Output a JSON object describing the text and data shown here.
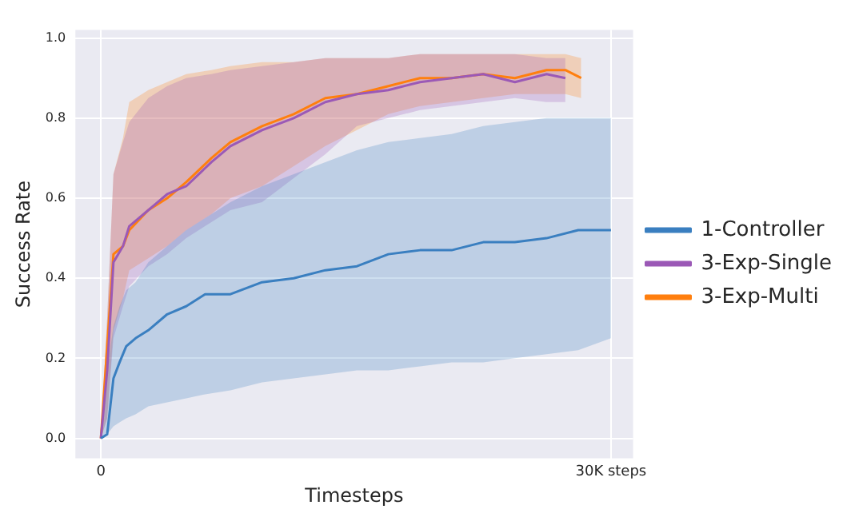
{
  "chart_data": {
    "type": "line",
    "xlabel": "Timesteps",
    "ylabel": "Success Rate",
    "xlim": [
      -1500,
      31300
    ],
    "ylim": [
      -0.05,
      1.02
    ],
    "xticks": [
      {
        "value": 0,
        "label": "0"
      },
      {
        "value": 30000,
        "label": "30K steps"
      }
    ],
    "yticks": [
      {
        "value": 0,
        "label": "0.0"
      },
      {
        "value": 0.2,
        "label": "0.2"
      },
      {
        "value": 0.4,
        "label": "0.4"
      },
      {
        "value": 0.6,
        "label": "0.6"
      },
      {
        "value": 0.8,
        "label": "0.8"
      },
      {
        "value": 1,
        "label": "1.0"
      }
    ],
    "grid": true,
    "legend": "right",
    "marker": "none",
    "line_style": "solid",
    "series": [
      {
        "name": "1-Controller",
        "color": "#3a7fc0",
        "x": [
          0,
          370,
          740,
          1100,
          1490,
          2040,
          2790,
          3900,
          5020,
          6130,
          7620,
          9480,
          11340,
          13200,
          15060,
          16910,
          18770,
          20630,
          22490,
          24350,
          26210,
          28070,
          30000
        ],
        "values": [
          0,
          0.01,
          0.15,
          0.19,
          0.23,
          0.25,
          0.27,
          0.31,
          0.33,
          0.36,
          0.36,
          0.39,
          0.4,
          0.42,
          0.43,
          0.46,
          0.47,
          0.47,
          0.49,
          0.49,
          0.5,
          0.52,
          0.52
        ],
        "lower": [
          0,
          0.01,
          0.03,
          0.04,
          0.05,
          0.06,
          0.08,
          0.09,
          0.1,
          0.11,
          0.12,
          0.14,
          0.15,
          0.16,
          0.17,
          0.17,
          0.18,
          0.19,
          0.19,
          0.2,
          0.21,
          0.22,
          0.25
        ],
        "upper": [
          0,
          0.17,
          0.28,
          0.33,
          0.37,
          0.39,
          0.44,
          0.48,
          0.52,
          0.55,
          0.59,
          0.63,
          0.66,
          0.69,
          0.72,
          0.74,
          0.75,
          0.76,
          0.78,
          0.79,
          0.8,
          0.8,
          0.8
        ]
      },
      {
        "name": "3-Exp-Single",
        "color": "#9b59b6",
        "x": [
          0,
          370,
          740,
          1300,
          1670,
          2790,
          3900,
          5020,
          6500,
          7620,
          9480,
          11340,
          13200,
          15060,
          16910,
          18770,
          20630,
          22490,
          24350,
          26210,
          27320
        ],
        "values": [
          0,
          0.17,
          0.44,
          0.48,
          0.53,
          0.57,
          0.61,
          0.63,
          0.69,
          0.73,
          0.77,
          0.8,
          0.84,
          0.86,
          0.87,
          0.89,
          0.9,
          0.91,
          0.89,
          0.91,
          0.9
        ],
        "lower": [
          0,
          0.05,
          0.25,
          0.33,
          0.38,
          0.43,
          0.46,
          0.5,
          0.54,
          0.57,
          0.59,
          0.65,
          0.71,
          0.78,
          0.8,
          0.82,
          0.83,
          0.84,
          0.85,
          0.84,
          0.84
        ],
        "upper": [
          0,
          0.3,
          0.66,
          0.74,
          0.79,
          0.85,
          0.88,
          0.9,
          0.91,
          0.92,
          0.93,
          0.94,
          0.95,
          0.95,
          0.95,
          0.96,
          0.96,
          0.96,
          0.96,
          0.95,
          0.95
        ]
      },
      {
        "name": "3-Exp-Multi",
        "color": "#ff7f0e",
        "x": [
          0,
          370,
          740,
          1300,
          1670,
          2790,
          3900,
          5020,
          6500,
          7620,
          9480,
          11340,
          13200,
          15060,
          16910,
          18770,
          20630,
          22490,
          24350,
          26210,
          27320,
          28250
        ],
        "values": [
          0,
          null,
          0.46,
          0.48,
          0.52,
          0.57,
          0.6,
          0.64,
          0.7,
          0.74,
          0.78,
          0.81,
          0.85,
          0.86,
          0.88,
          0.9,
          0.9,
          0.91,
          0.9,
          0.92,
          0.92,
          0.9
        ],
        "lower": [
          0,
          0.05,
          0.27,
          0.35,
          0.42,
          0.45,
          0.48,
          0.52,
          0.56,
          0.6,
          0.63,
          0.68,
          0.73,
          0.77,
          0.81,
          0.83,
          0.84,
          0.85,
          0.86,
          0.86,
          0.86,
          0.85
        ],
        "upper": [
          0,
          0.3,
          0.66,
          0.75,
          0.84,
          0.87,
          0.89,
          0.91,
          0.92,
          0.93,
          0.94,
          0.94,
          0.95,
          0.95,
          0.95,
          0.96,
          0.96,
          0.96,
          0.96,
          0.96,
          0.96,
          0.95
        ]
      }
    ]
  }
}
